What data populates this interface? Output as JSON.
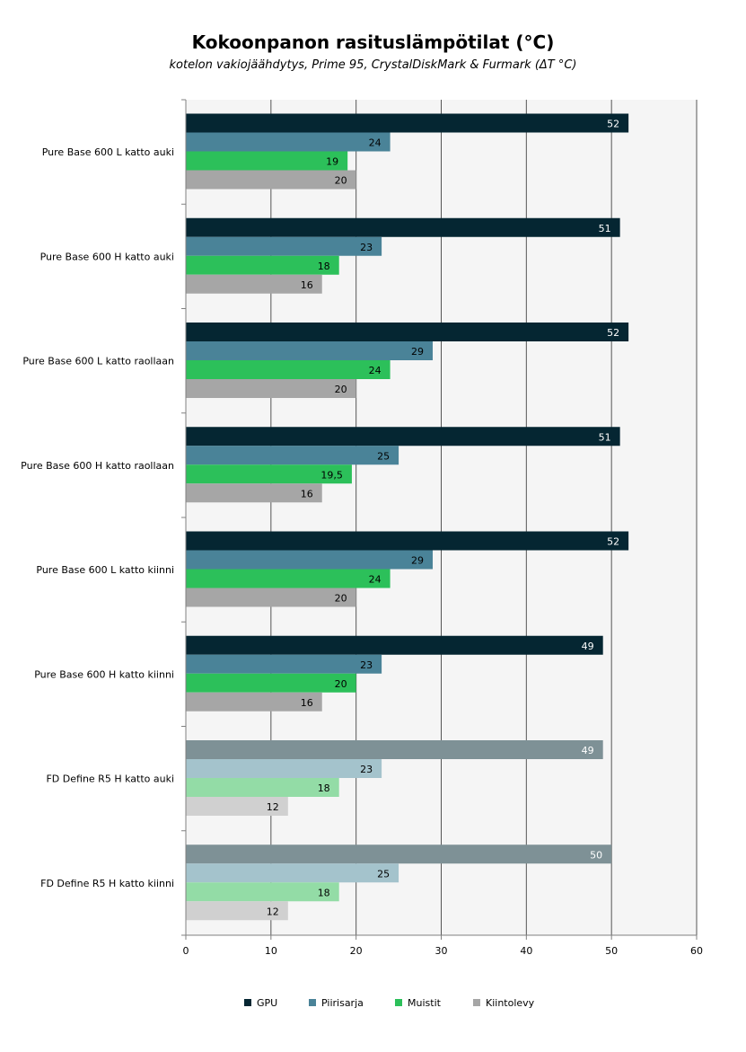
{
  "chart_data": {
    "type": "bar",
    "orientation": "horizontal",
    "title": "Kokoonpanon rasituslämpötilat (°C)",
    "subtitle": "kotelon vakiojäähdytys,  Prime 95, CrystalDiskMark & Furmark (ΔT °C)",
    "categories": [
      "Pure Base 600 L katto auki",
      "Pure Base 600 H katto auki",
      "Pure Base 600 L katto raollaan",
      "Pure Base 600 H katto raollaan",
      "Pure Base 600 L katto kiinni",
      "Pure Base 600 H katto kiinni",
      "FD Define R5 H katto auki",
      "FD Define R5 H katto kiinni"
    ],
    "series": [
      {
        "name": "GPU",
        "color": "#052632",
        "values": [
          52,
          51,
          52,
          51,
          52,
          49,
          49,
          50
        ],
        "value_labels": [
          "52",
          "51",
          "52",
          "51",
          "52",
          "49",
          "49",
          "50"
        ]
      },
      {
        "name": "Piirisarja",
        "color": "#4a8398",
        "values": [
          24,
          23,
          29,
          25,
          29,
          23,
          23,
          25
        ],
        "value_labels": [
          "24",
          "23",
          "29",
          "25",
          "29",
          "23",
          "23",
          "25"
        ]
      },
      {
        "name": "Muistit",
        "color": "#2cc05a",
        "values": [
          19,
          18,
          24,
          19.5,
          24,
          20,
          18,
          18
        ],
        "value_labels": [
          "19",
          "18",
          "24",
          "19,5",
          "24",
          "20",
          "18",
          "18"
        ]
      },
      {
        "name": "Kiintolevy",
        "color": "#a6a6a6",
        "values": [
          20,
          16,
          20,
          16,
          20,
          16,
          12,
          12
        ],
        "value_labels": [
          "20",
          "16",
          "20",
          "16",
          "20",
          "16",
          "12",
          "12"
        ]
      }
    ],
    "faded_categories": [
      6,
      7
    ],
    "faded_colors": [
      "#7e9196",
      "#a4c3cc",
      "#93dca6",
      "#d0d0d0"
    ],
    "xlim": [
      0,
      60
    ],
    "xticks": [
      0,
      10,
      20,
      30,
      40,
      50,
      60
    ],
    "grid": true,
    "legend_position": "bottom"
  }
}
